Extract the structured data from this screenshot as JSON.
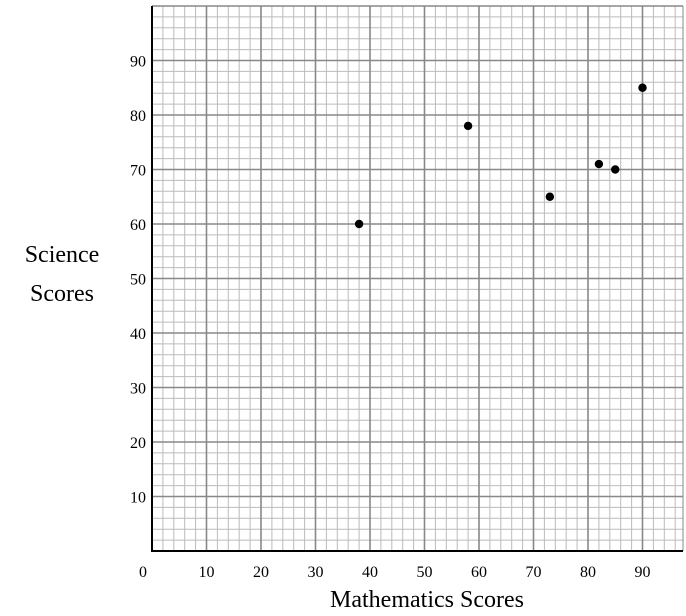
{
  "chart_data": {
    "type": "scatter",
    "title": "",
    "xlabel": "Mathematics Scores",
    "ylabel_lines": [
      "Science",
      "Scores"
    ],
    "xlim": [
      0,
      97
    ],
    "ylim": [
      0,
      100
    ],
    "x_ticks": [
      0,
      10,
      20,
      30,
      40,
      50,
      60,
      70,
      80,
      90
    ],
    "y_ticks": [
      10,
      20,
      30,
      40,
      50,
      60,
      70,
      80,
      90
    ],
    "grid": true,
    "minor_step": 2,
    "series": [
      {
        "points": [
          {
            "x": 38,
            "y": 60
          },
          {
            "x": 58,
            "y": 78
          },
          {
            "x": 73,
            "y": 65
          },
          {
            "x": 82,
            "y": 71
          },
          {
            "x": 85,
            "y": 70
          },
          {
            "x": 90,
            "y": 85
          }
        ]
      }
    ],
    "colors": {
      "grid_major": "#888888",
      "grid_minor": "#bbbbbb",
      "axis": "#000000",
      "point": "#000000"
    }
  }
}
